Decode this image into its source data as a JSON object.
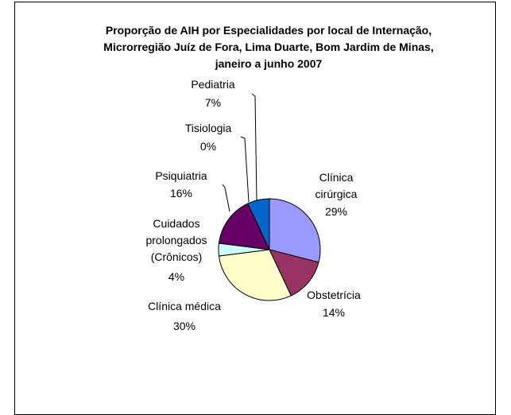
{
  "chart_data": {
    "type": "pie",
    "title": "Proporção de AIH por Especialidades por local de Internação, Microrregião Juíz de Fora, Lima Duarte, Bom Jardim de Minas, janeiro a junho 2007",
    "categories": [
      "Clínica cirúrgica",
      "Obstetrícia",
      "Clínica médica",
      "Cuidados prolongados (Crônicos)",
      "Psiquiatria",
      "Tisiologia",
      "Pediatria"
    ],
    "values": [
      29,
      14,
      30,
      4,
      16,
      0,
      7
    ],
    "value_labels": [
      "29%",
      "14%",
      "30%",
      "4%",
      "16%",
      "0%",
      "7%"
    ],
    "colors": [
      "#9999ff",
      "#993366",
      "#ffffcc",
      "#ccffff",
      "#660066",
      "#ff8080",
      "#0066cc"
    ]
  }
}
